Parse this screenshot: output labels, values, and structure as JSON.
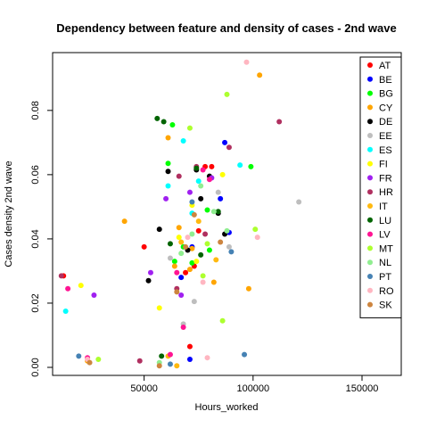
{
  "chart_data": {
    "type": "scatter",
    "title": "Dependency between feature and density of cases -  2nd wave",
    "xlabel": "Hours_worked",
    "ylabel": "Cases density  2nd wave",
    "xlim": [
      8000,
      168000
    ],
    "ylim": [
      -0.0025,
      0.098
    ],
    "x_ticks": [
      50000,
      100000,
      150000
    ],
    "y_ticks": [
      0.0,
      0.02,
      0.04,
      0.06,
      0.08
    ],
    "legend_position": "top-right",
    "grid": false,
    "series": [
      {
        "name": "AT",
        "color": "#FF0000",
        "points": [
          [
            13000,
            0.0285
          ],
          [
            50000,
            0.0375
          ],
          [
            69000,
            0.0295
          ],
          [
            75000,
            0.0425
          ],
          [
            71000,
            0.0065
          ],
          [
            78000,
            0.0625
          ],
          [
            81000,
            0.0625
          ],
          [
            73000,
            0.0315
          ]
        ]
      },
      {
        "name": "BE",
        "color": "#0000FF",
        "points": [
          [
            71000,
            0.0025
          ],
          [
            67000,
            0.028
          ],
          [
            72000,
            0.0375
          ],
          [
            87000,
            0.07
          ],
          [
            85000,
            0.0525
          ],
          [
            89000,
            0.042
          ]
        ]
      },
      {
        "name": "BG",
        "color": "#00FF00",
        "points": [
          [
            63000,
            0.0755
          ],
          [
            61000,
            0.0635
          ],
          [
            99000,
            0.0625
          ],
          [
            68000,
            0.0375
          ],
          [
            79000,
            0.049
          ],
          [
            80000,
            0.0365
          ],
          [
            72000,
            0.0325
          ],
          [
            64000,
            0.033
          ]
        ]
      },
      {
        "name": "CY",
        "color": "#FFA500",
        "points": [
          [
            24000,
            0.002
          ],
          [
            61000,
            0.0715
          ],
          [
            103000,
            0.091
          ],
          [
            41000,
            0.0455
          ],
          [
            64000,
            0.0315
          ],
          [
            72000,
            0.037
          ],
          [
            66000,
            0.0435
          ],
          [
            98000,
            0.0245
          ],
          [
            71000,
            0.0305
          ],
          [
            82000,
            0.0265
          ]
        ]
      },
      {
        "name": "DE",
        "color": "#000000",
        "points": [
          [
            52000,
            0.027
          ],
          [
            61000,
            0.061
          ],
          [
            57000,
            0.043
          ],
          [
            74000,
            0.0615
          ],
          [
            80000,
            0.0595
          ],
          [
            84000,
            0.048
          ],
          [
            70000,
            0.0365
          ],
          [
            76000,
            0.0525
          ],
          [
            87000,
            0.0415
          ]
        ]
      },
      {
        "name": "EE",
        "color": "#BEBEBE",
        "points": [
          [
            121000,
            0.0515
          ],
          [
            68000,
            0.0135
          ],
          [
            62000,
            0.034
          ],
          [
            84000,
            0.0545
          ],
          [
            89000,
            0.0375
          ],
          [
            73000,
            0.0205
          ]
        ]
      },
      {
        "name": "ES",
        "color": "#00FFFF",
        "points": [
          [
            14000,
            0.0175
          ],
          [
            75000,
            0.058
          ],
          [
            94000,
            0.063
          ],
          [
            68000,
            0.0705
          ],
          [
            61000,
            0.0565
          ],
          [
            72000,
            0.048
          ]
        ]
      },
      {
        "name": "FI",
        "color": "#FFFF00",
        "points": [
          [
            21000,
            0.0255
          ],
          [
            57000,
            0.0185
          ],
          [
            72000,
            0.0505
          ],
          [
            86000,
            0.06
          ],
          [
            74000,
            0.033
          ],
          [
            66000,
            0.0405
          ]
        ]
      },
      {
        "name": "FR",
        "color": "#A020F0",
        "points": [
          [
            27000,
            0.0225
          ],
          [
            53000,
            0.0295
          ],
          [
            60000,
            0.0525
          ],
          [
            81000,
            0.059
          ],
          [
            71000,
            0.0545
          ],
          [
            67000,
            0.0225
          ]
        ]
      },
      {
        "name": "HR",
        "color": "#B03060",
        "points": [
          [
            12000,
            0.0285
          ],
          [
            48000,
            0.002
          ],
          [
            65000,
            0.0245
          ],
          [
            112000,
            0.0765
          ],
          [
            74000,
            0.0625
          ],
          [
            89000,
            0.0685
          ],
          [
            78000,
            0.0415
          ],
          [
            66000,
            0.0595
          ]
        ]
      },
      {
        "name": "IT",
        "color": "#FFB90F",
        "points": [
          [
            65000,
            0.0005
          ],
          [
            61000,
            0.0035
          ],
          [
            83000,
            0.0335
          ],
          [
            75000,
            0.0455
          ],
          [
            67000,
            0.039
          ]
        ]
      },
      {
        "name": "LU",
        "color": "#006400",
        "points": [
          [
            58000,
            0.0035
          ],
          [
            56000,
            0.0775
          ],
          [
            59000,
            0.0765
          ],
          [
            74000,
            0.062
          ],
          [
            84000,
            0.0485
          ],
          [
            62000,
            0.0385
          ],
          [
            76000,
            0.035
          ]
        ]
      },
      {
        "name": "LV",
        "color": "#FF1493",
        "points": [
          [
            15000,
            0.0245
          ],
          [
            24000,
            0.003
          ],
          [
            62000,
            0.004
          ],
          [
            68000,
            0.0125
          ],
          [
            77000,
            0.0615
          ],
          [
            80000,
            0.0585
          ],
          [
            65000,
            0.0295
          ]
        ]
      },
      {
        "name": "MT",
        "color": "#ADFF2F",
        "points": [
          [
            29000,
            0.0025
          ],
          [
            71000,
            0.0745
          ],
          [
            88000,
            0.085
          ],
          [
            101000,
            0.043
          ],
          [
            86000,
            0.0145
          ],
          [
            77000,
            0.0285
          ],
          [
            79000,
            0.0385
          ]
        ]
      },
      {
        "name": "NL",
        "color": "#90EE90",
        "points": [
          [
            57000,
            0.0015
          ],
          [
            67000,
            0.0355
          ],
          [
            76000,
            0.0565
          ],
          [
            88000,
            0.0425
          ],
          [
            72000,
            0.0415
          ],
          [
            82000,
            0.0485
          ]
        ]
      },
      {
        "name": "PT",
        "color": "#4682B4",
        "points": [
          [
            20000,
            0.0035
          ],
          [
            62000,
            0.001
          ],
          [
            96000,
            0.004
          ],
          [
            90000,
            0.036
          ],
          [
            72000,
            0.0515
          ]
        ]
      },
      {
        "name": "RO",
        "color": "#FFB6C1",
        "points": [
          [
            24000,
            0.0025
          ],
          [
            79000,
            0.003
          ],
          [
            97000,
            0.095
          ],
          [
            102000,
            0.0405
          ],
          [
            70000,
            0.0405
          ],
          [
            77000,
            0.0265
          ]
        ]
      },
      {
        "name": "SK",
        "color": "#CD853F",
        "points": [
          [
            25000,
            0.0015
          ],
          [
            57000,
            0.0005
          ],
          [
            85000,
            0.039
          ],
          [
            73000,
            0.0475
          ],
          [
            69000,
            0.0375
          ],
          [
            65000,
            0.0235
          ]
        ]
      }
    ]
  }
}
